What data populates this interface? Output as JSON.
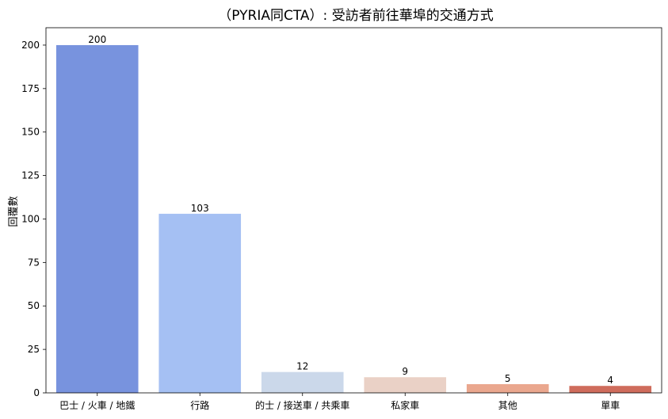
{
  "chart_data": {
    "type": "bar",
    "title": "（PYRIA同CTA）: 受訪者前往華埠的交通方式",
    "xlabel": "",
    "ylabel": "回覆數",
    "ylim": [
      0,
      210
    ],
    "yticks": [
      0,
      25,
      50,
      75,
      100,
      125,
      150,
      175,
      200
    ],
    "categories": [
      "巴士 / 火車 / 地鐵",
      "行路",
      "的士 / 接送車 / 共乘車",
      "私家車",
      "其他",
      "單車"
    ],
    "values": [
      200,
      103,
      12,
      9,
      5,
      4
    ],
    "colors": [
      "#7893de",
      "#a5c0f3",
      "#cbd8ea",
      "#ead1c6",
      "#eaa78e",
      "#cf6c5c"
    ],
    "grid": false,
    "legend": "none"
  }
}
